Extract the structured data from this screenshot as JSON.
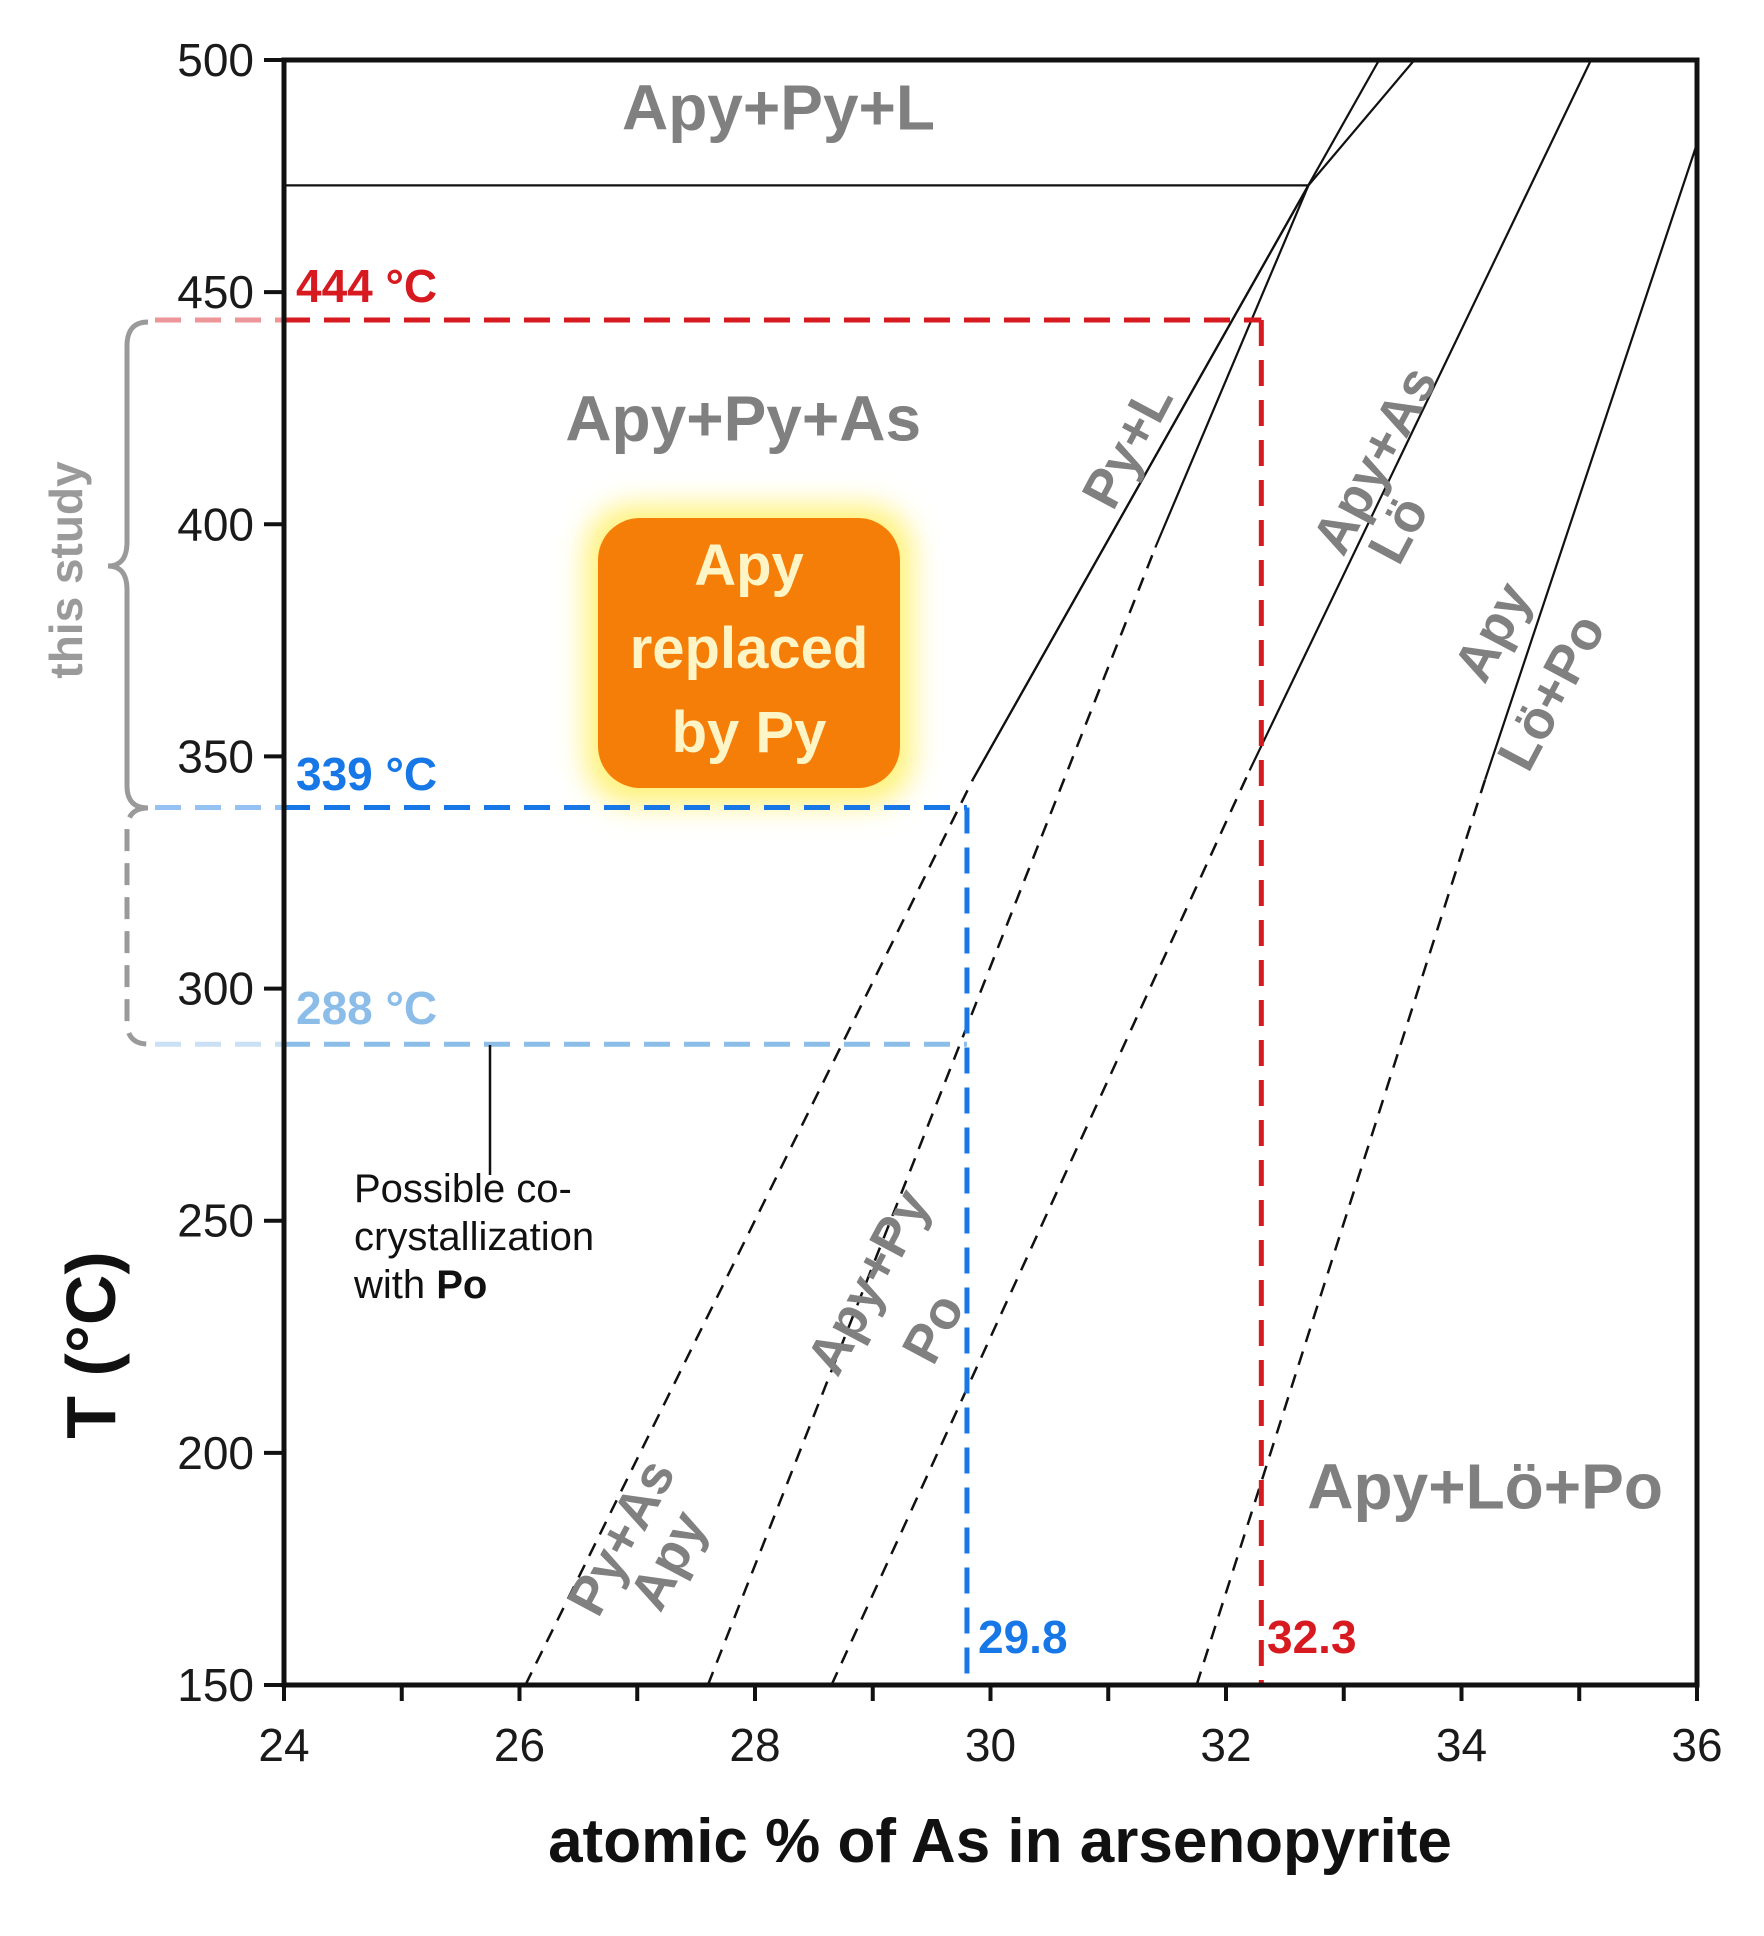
{
  "chart_data": {
    "type": "line",
    "xlabel": "atomic % of As in arsenopyrite",
    "ylabel": "T (°C)",
    "xlim": [
      24,
      36
    ],
    "ylim": [
      150,
      500
    ],
    "x_ticks": [
      24,
      26,
      28,
      30,
      32,
      34,
      36
    ],
    "y_ticks": [
      150,
      200,
      250,
      300,
      350,
      400,
      450,
      500
    ],
    "phase_boundaries": [
      {
        "style": "solid",
        "points": [
          [
            24,
            473
          ],
          [
            32.7,
            473
          ]
        ]
      },
      {
        "style": "solid",
        "points": [
          [
            29.85,
            345
          ],
          [
            33.3,
            500
          ]
        ]
      },
      {
        "style": "solid",
        "points": [
          [
            29.85,
            345
          ],
          [
            32.7,
            473
          ],
          [
            33.6,
            500
          ]
        ]
      },
      {
        "style": "solid",
        "points": [
          [
            32.7,
            473
          ],
          [
            31.4,
            395
          ]
        ]
      },
      {
        "style": "solid",
        "points": [
          [
            32.2,
            347
          ],
          [
            35.1,
            500
          ]
        ]
      },
      {
        "style": "solid",
        "points": [
          [
            34.2,
            345
          ],
          [
            36,
            482
          ]
        ]
      },
      {
        "style": "dashed",
        "points": [
          [
            26.05,
            150
          ],
          [
            29.85,
            345
          ]
        ]
      },
      {
        "style": "dashed",
        "points": [
          [
            27.6,
            150
          ],
          [
            31.4,
            395
          ]
        ]
      },
      {
        "style": "dashed",
        "points": [
          [
            28.65,
            150
          ],
          [
            32.2,
            347
          ]
        ]
      },
      {
        "style": "dashed",
        "points": [
          [
            31.75,
            150
          ],
          [
            34.2,
            345
          ]
        ]
      }
    ],
    "reference_lines": [
      {
        "name": "444 °C",
        "temperature": 444,
        "composition": 32.3,
        "color": "#d71920",
        "composition_label": "32.3"
      },
      {
        "name": "339 °C",
        "temperature": 339,
        "composition": 29.8,
        "color": "#1877e6",
        "composition_label": "29.8"
      },
      {
        "name": "288 °C",
        "temperature": 288,
        "color": "#8cbde9"
      }
    ],
    "region_labels": [
      {
        "text": "Apy+Py+L",
        "x": 28.2,
        "y": 485
      },
      {
        "text": "Apy+Py+As",
        "x": 27.9,
        "y": 418
      },
      {
        "text": "Py+L",
        "x": 31.3,
        "y": 415
      },
      {
        "text": "Apy+As",
        "x": 33.4,
        "y": 412
      },
      {
        "text": "Lö",
        "x": 33.6,
        "y": 397
      },
      {
        "text": "Apy",
        "x": 34.4,
        "y": 375
      },
      {
        "text": "Lö+Po",
        "x": 34.9,
        "y": 362
      },
      {
        "text": "Apy+Py",
        "x": 29.1,
        "y": 235
      },
      {
        "text": "Po",
        "x": 29.65,
        "y": 225
      },
      {
        "text": "Py+As",
        "x": 27.0,
        "y": 180
      },
      {
        "text": "Apy",
        "x": 27.4,
        "y": 175
      },
      {
        "text": "Apy+Lö+Po",
        "x": 34.2,
        "y": 188
      }
    ]
  },
  "annotations": {
    "temp_444": "444 °C",
    "temp_339": "339 °C",
    "temp_288": "288 °C",
    "comp_298": "29.8",
    "comp_323": "32.3",
    "this_study": "this study",
    "replaced_box": [
      "Apy",
      "replaced",
      "by Py"
    ],
    "note_lines": [
      "Possible co-",
      "crystallization"
    ],
    "note_with": "with ",
    "note_po": "Po"
  },
  "colors": {
    "red": "#d71920",
    "blue": "#1877e6",
    "light_blue": "#8cbde9",
    "gray_label": "#808080",
    "box_fill": "#f47e08",
    "box_text": "#fdf5c6",
    "box_glow": "#fff27a"
  }
}
